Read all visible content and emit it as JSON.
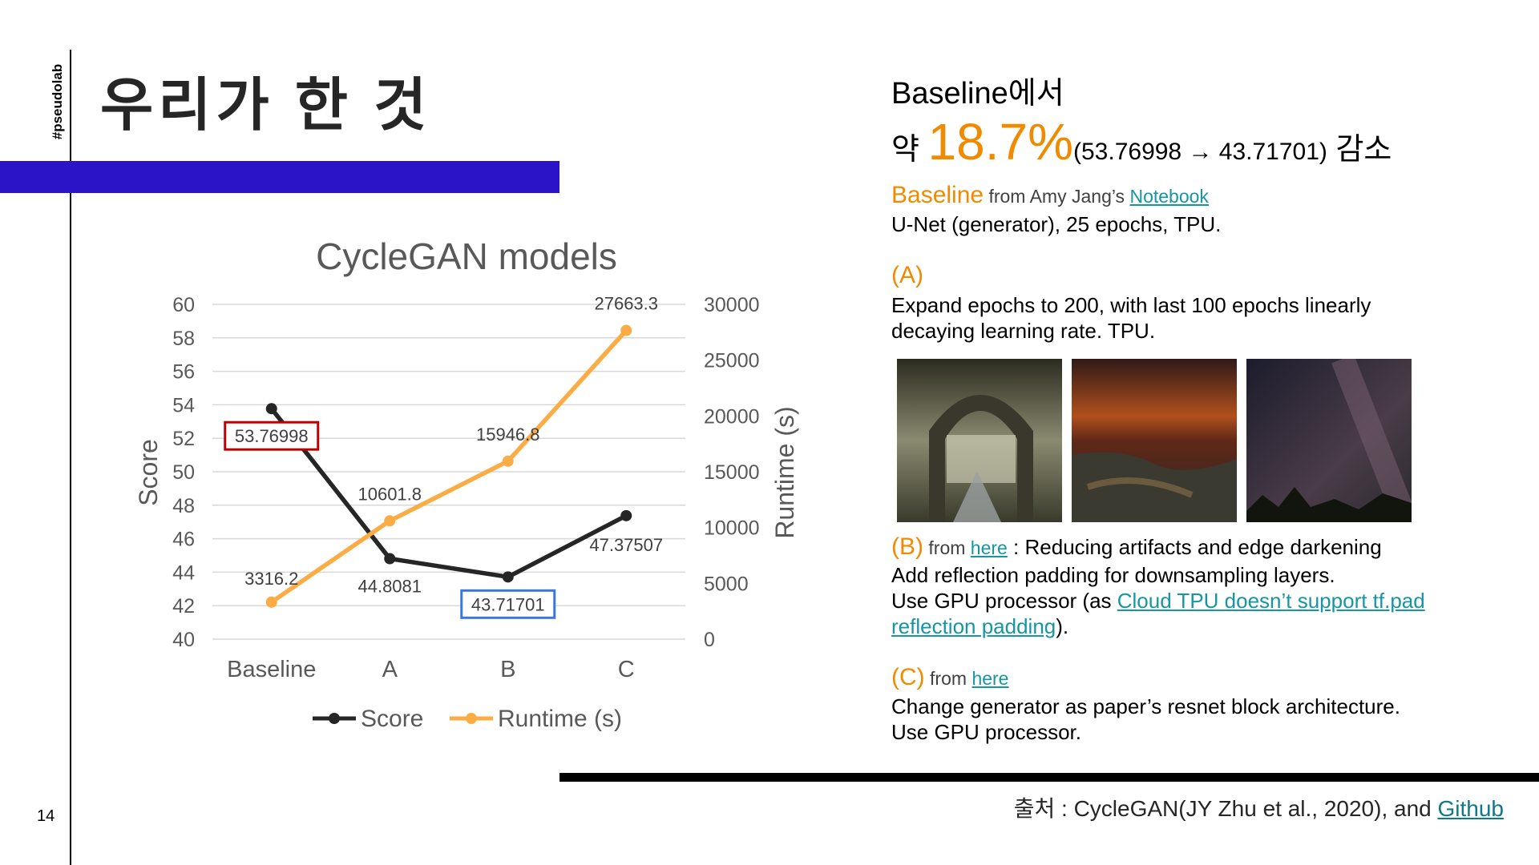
{
  "slide": {
    "brand": "#pseudolab",
    "title": "우리가 한 것",
    "page_number": "14",
    "source_prefix": "출처 : CycleGAN(JY Zhu et al., 2020), and ",
    "source_link": "Github"
  },
  "summary": {
    "line1": "Baseline에서",
    "prefix": "약 ",
    "percent": "18.7%",
    "detail": "(53.76998 → 43.71701)",
    "suffix": " 감소"
  },
  "baseline": {
    "label": "Baseline",
    "from": " from Amy Jang’s ",
    "link": "Notebook",
    "desc": "U-Net (generator), 25 epochs, TPU."
  },
  "variant_a": {
    "label": "(A)",
    "line1": "Expand epochs to 200, with last 100 epochs linearly",
    "line2": "decaying learning rate. TPU."
  },
  "variant_b": {
    "label": "(B)",
    "from": " from ",
    "link": "here",
    "title": " : Reducing artifacts and edge darkening",
    "line1": "Add reflection padding for downsampling layers.",
    "line2_prefix": "Use GPU processor (as ",
    "link2a": "Cloud TPU doesn’t support tf.pad",
    "link2b": "reflection padding",
    "line3_suffix": ")."
  },
  "variant_c": {
    "label": "(C)",
    "from": " from ",
    "link": "here",
    "line1": "Change generator as paper’s resnet block architecture.",
    "line2": "Use GPU processor."
  },
  "images": [
    {
      "name": "bridge-landscape-image",
      "colors": [
        "#2c2b20",
        "#8a8a70",
        "#c9c8b0"
      ]
    },
    {
      "name": "sunset-shore-image",
      "colors": [
        "#301818",
        "#b0501c",
        "#3a3a30"
      ]
    },
    {
      "name": "night-sky-image",
      "colors": [
        "#1c1c2c",
        "#4a3c48",
        "#7a6070"
      ]
    }
  ],
  "chart_data": {
    "type": "line",
    "title": "CycleGAN models",
    "categories": [
      "Baseline",
      "A",
      "B",
      "C"
    ],
    "y_left": {
      "label": "Score",
      "range": [
        40,
        60
      ],
      "ticks": [
        "40",
        "42",
        "44",
        "46",
        "48",
        "50",
        "52",
        "54",
        "56",
        "58",
        "60"
      ]
    },
    "y_right": {
      "label": "Runtime (s)",
      "range": [
        0,
        30000
      ],
      "ticks": [
        "0",
        "5000",
        "10000",
        "15000",
        "20000",
        "25000",
        "30000"
      ]
    },
    "series": [
      {
        "name": "Score",
        "axis": "left",
        "color": "#262626",
        "values": [
          53.76998,
          44.8081,
          43.71701,
          47.37507
        ],
        "labels": [
          "53.76998",
          "44.8081",
          "43.71701",
          "47.37507"
        ]
      },
      {
        "name": "Runtime (s)",
        "axis": "right",
        "color": "#fbac45",
        "values": [
          3316.2,
          10601.8,
          15946.8,
          27663.3
        ],
        "labels": [
          "3316.2",
          "10601.8",
          "15946.8",
          "27663.3"
        ]
      }
    ],
    "highlight_colors": {
      "Baseline": "#c00000",
      "B": "#3a78e0"
    },
    "grid": true,
    "legend": "bottom"
  }
}
